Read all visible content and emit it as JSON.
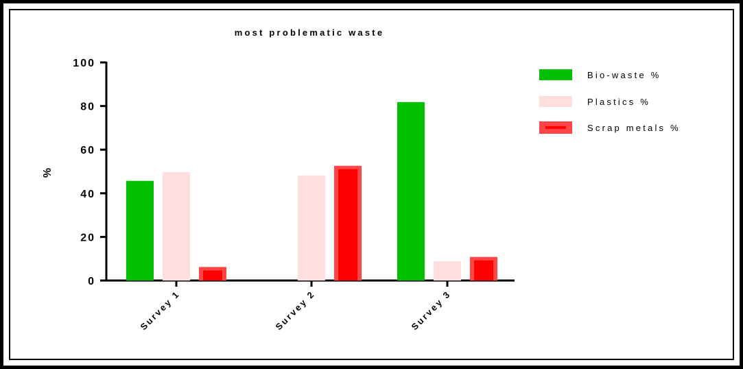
{
  "chart_data": {
    "type": "bar",
    "title": "most problematic waste",
    "xlabel": "",
    "ylabel": "%",
    "ylim": [
      0,
      100
    ],
    "yticks": [
      "0",
      "20",
      "40",
      "60",
      "80",
      "100"
    ],
    "categories": [
      "Survey 1",
      "Survey 2",
      "Survey 3"
    ],
    "series": [
      {
        "name": "Bio-waste %",
        "values": [
          45.7,
          0,
          81.8
        ],
        "color": "#00c000",
        "style": "solid"
      },
      {
        "name": "Plastics %",
        "values": [
          49.7,
          48.2,
          8.8
        ],
        "color": "#ffdede",
        "style": "solid"
      },
      {
        "name": "Scrap metals %",
        "values": [
          6.2,
          52.6,
          10.8
        ],
        "color": "#ff0000",
        "edge_color": "#ff4545",
        "style": "bordered"
      }
    ],
    "legend": "right",
    "grid": false
  }
}
